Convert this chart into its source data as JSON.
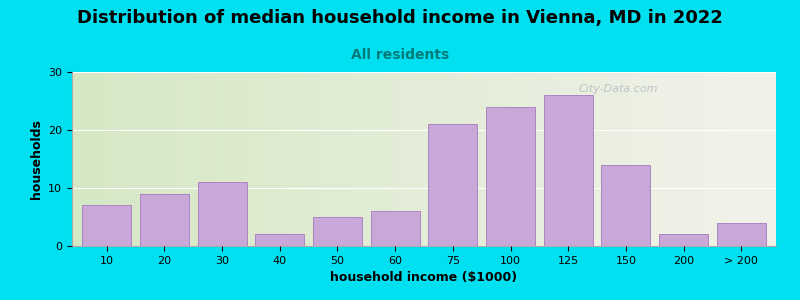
{
  "title": "Distribution of median household income in Vienna, MD in 2022",
  "subtitle": "All residents",
  "xlabel": "household income ($1000)",
  "ylabel": "households",
  "bar_labels": [
    "10",
    "20",
    "30",
    "40",
    "50",
    "60",
    "75",
    "100",
    "125",
    "150",
    "200",
    "> 200"
  ],
  "bar_values": [
    7,
    9,
    11,
    2,
    5,
    6,
    21,
    24,
    26,
    14,
    2,
    4
  ],
  "bar_color": "#c8a8d8",
  "bar_edge_color": "#a878c0",
  "ylim": [
    0,
    30
  ],
  "yticks": [
    0,
    10,
    20,
    30
  ],
  "background_outer": "#00e0f0",
  "background_inner_left": "#d5e8c5",
  "background_inner_right": "#f2f2ea",
  "title_fontsize": 13,
  "subtitle_fontsize": 10,
  "subtitle_color": "#007b7b",
  "watermark": "City-Data.com",
  "watermark_color": "#b0b8c0",
  "grid_color": "#ffffff",
  "spine_color": "#aaaaaa"
}
